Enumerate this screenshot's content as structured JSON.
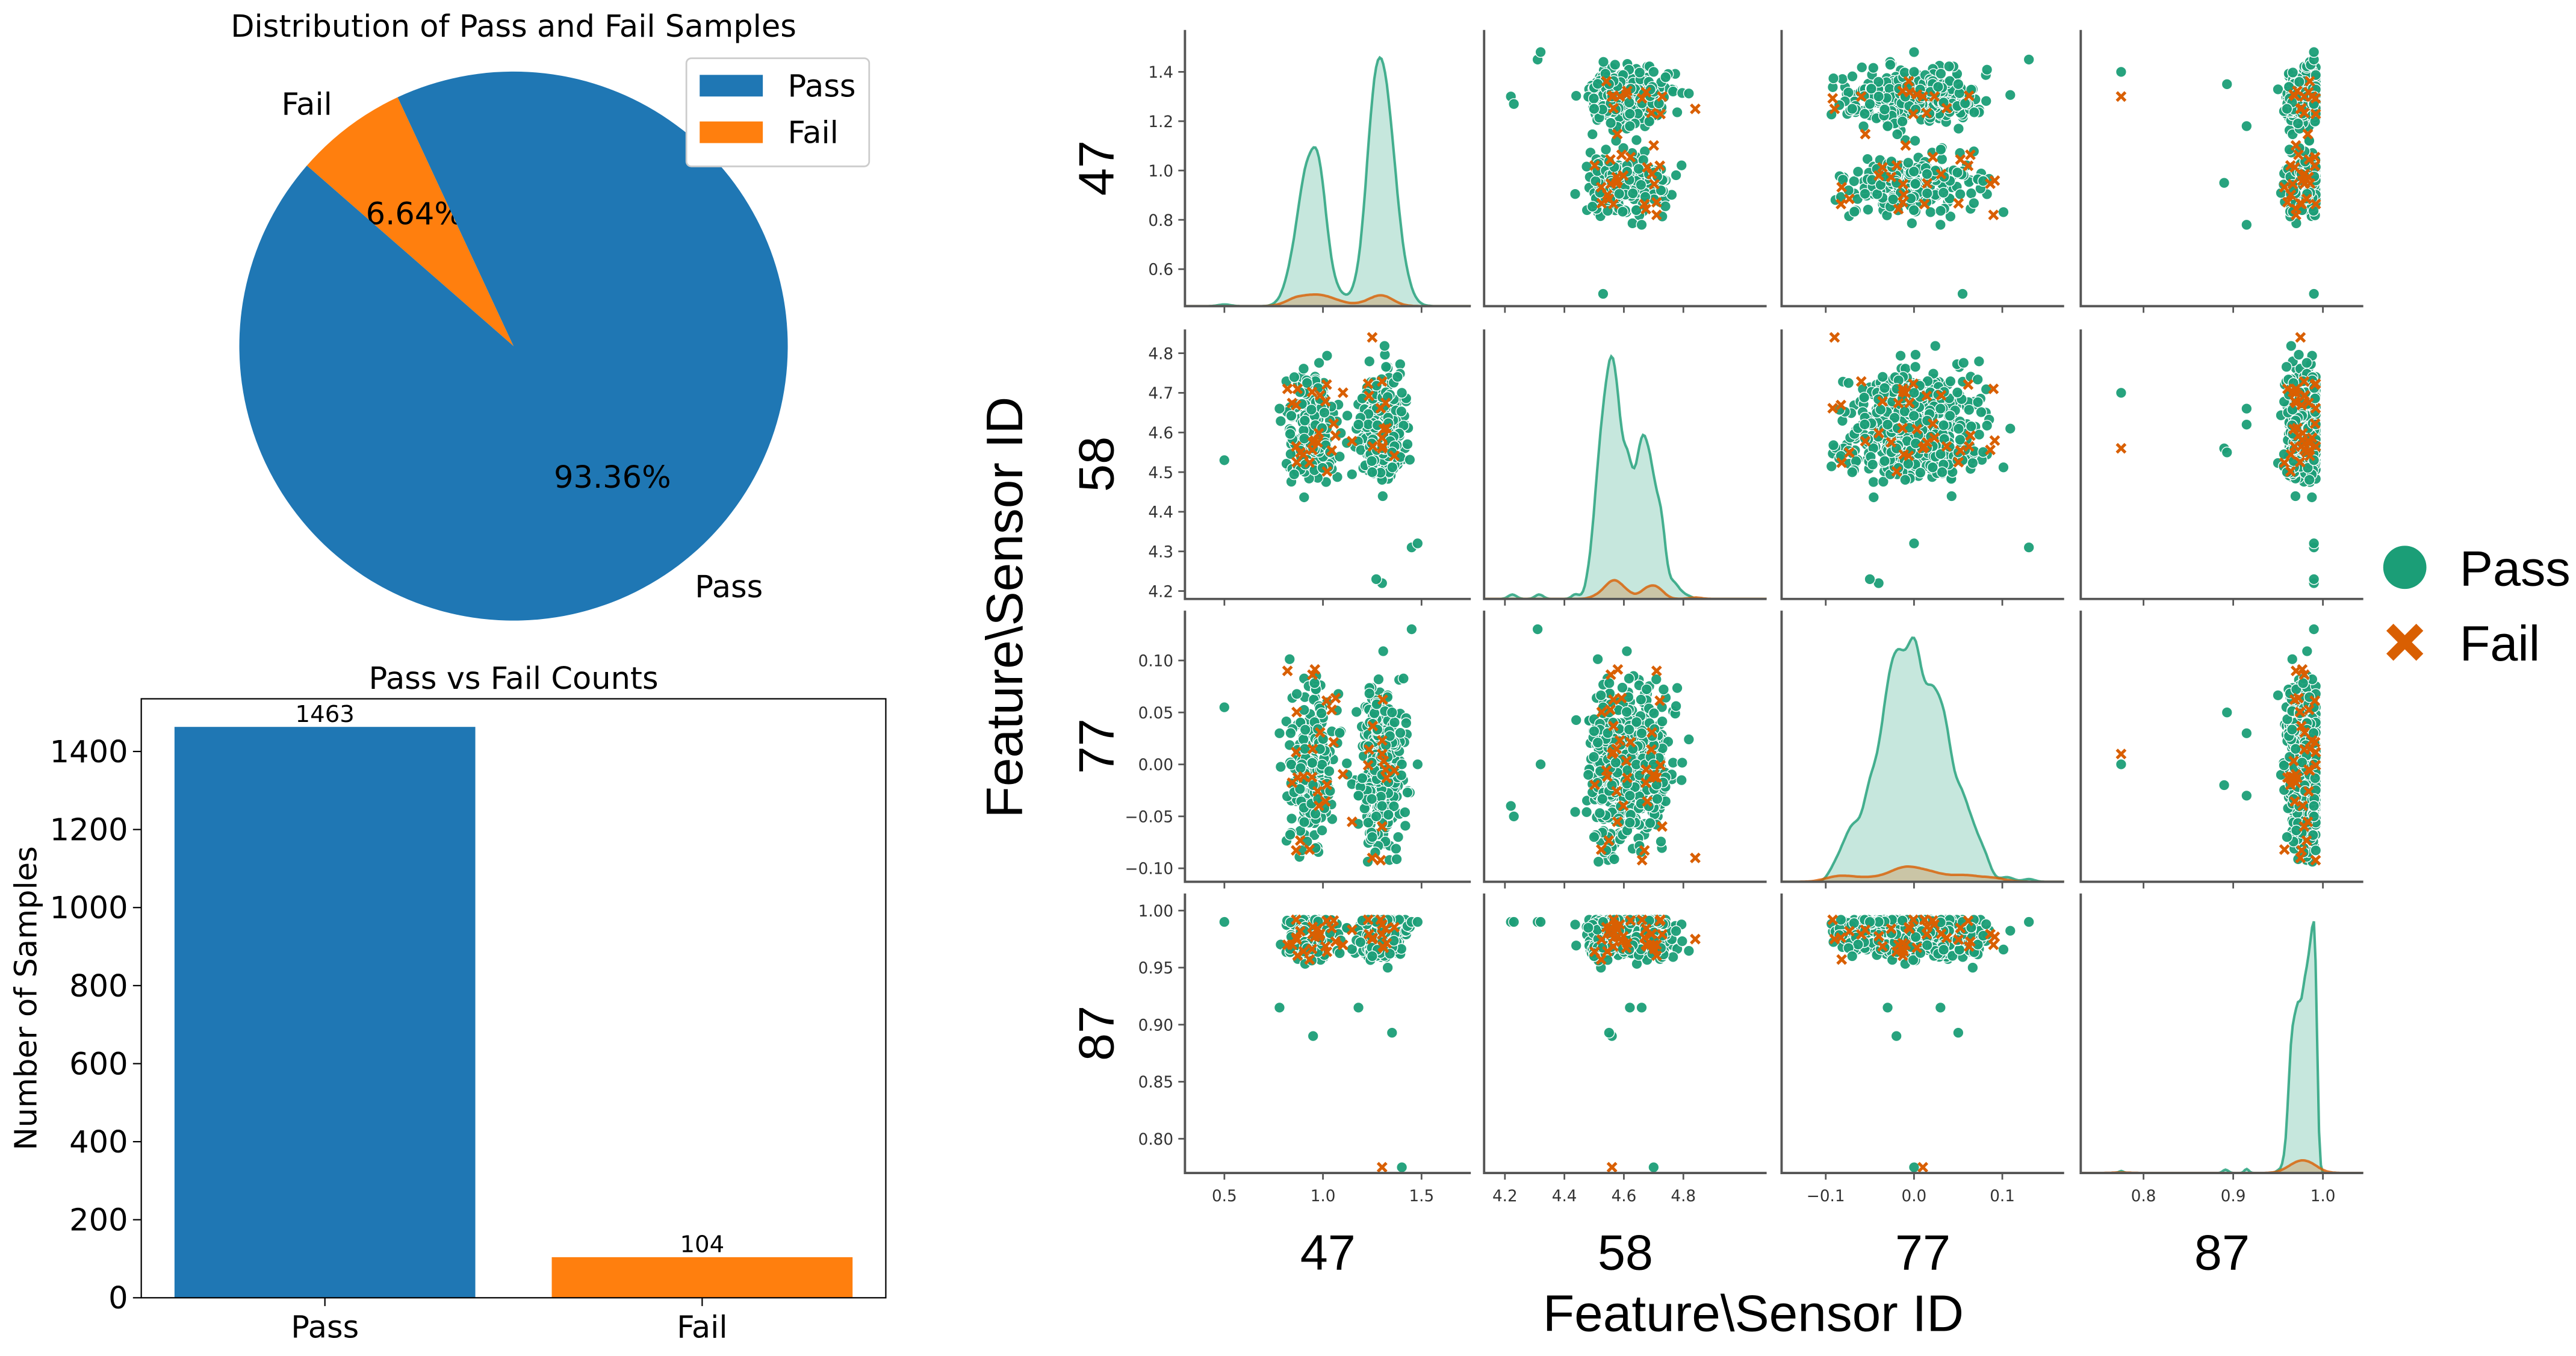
{
  "chart_data": [
    {
      "type": "pie",
      "title": "Distribution of Pass and Fail Samples",
      "labels": [
        "Pass",
        "Fail"
      ],
      "values": [
        93.36,
        6.64
      ],
      "pct_labels": [
        "93.36%",
        "6.64%"
      ],
      "colors": [
        "#1f77b4",
        "#ff7f0e"
      ],
      "start_angle_deg": 115,
      "legend": {
        "entries": [
          "Pass",
          "Fail"
        ],
        "placement": "upper right"
      }
    },
    {
      "type": "bar",
      "title": "Pass vs Fail Counts",
      "categories": [
        "Pass",
        "Fail"
      ],
      "values": [
        1463,
        104
      ],
      "value_labels": [
        "1463",
        "104"
      ],
      "colors": [
        "#1f77b4",
        "#ff7f0e"
      ],
      "xlabel": "",
      "ylabel": "Number of Samples",
      "yticks": [
        0,
        200,
        400,
        600,
        800,
        1000,
        1200,
        1400
      ],
      "ylim": [
        0,
        1535
      ]
    },
    {
      "type": "scatter",
      "subtype": "pairplot",
      "variables": [
        "47",
        "58",
        "77",
        "87"
      ],
      "xlabel": "Feature\\Sensor ID",
      "ylabel": "Feature\\Sensor ID",
      "hue": {
        "entries": [
          "Pass",
          "Fail"
        ],
        "colors": [
          "#1b9e77",
          "#d95f02"
        ],
        "markers": [
          "circle",
          "x"
        ],
        "placement": "right"
      },
      "diagonal": "kde",
      "axes": {
        "47": {
          "range": [
            0.3,
            1.75
          ],
          "xticks": [
            "0.5",
            "1.0",
            "1.5"
          ],
          "yrange": [
            0.45,
            1.57
          ],
          "yticks": [
            "0.6",
            "0.8",
            "1.0",
            "1.2",
            "1.4"
          ]
        },
        "58": {
          "range": [
            4.13,
            5.08
          ],
          "xticks": [
            "4.2",
            "4.4",
            "4.6",
            "4.8"
          ],
          "yrange": [
            4.18,
            4.86
          ],
          "yticks": [
            "4.2",
            "4.3",
            "4.4",
            "4.5",
            "4.6",
            "4.7",
            "4.8"
          ]
        },
        "77": {
          "range": [
            -0.15,
            0.17
          ],
          "xticks": [
            "−0.1",
            "0.0",
            "0.1"
          ],
          "yrange": [
            -0.113,
            0.148
          ],
          "yticks": [
            "−0.10",
            "−0.05",
            "0.00",
            "0.05",
            "0.10"
          ]
        },
        "87": {
          "range": [
            0.73,
            1.045
          ],
          "xticks": [
            "0.8",
            "0.9",
            "1.0"
          ],
          "yrange": [
            0.77,
            1.015
          ],
          "yticks": [
            "0.80",
            "0.85",
            "0.90",
            "0.95",
            "1.00"
          ]
        }
      }
    }
  ]
}
